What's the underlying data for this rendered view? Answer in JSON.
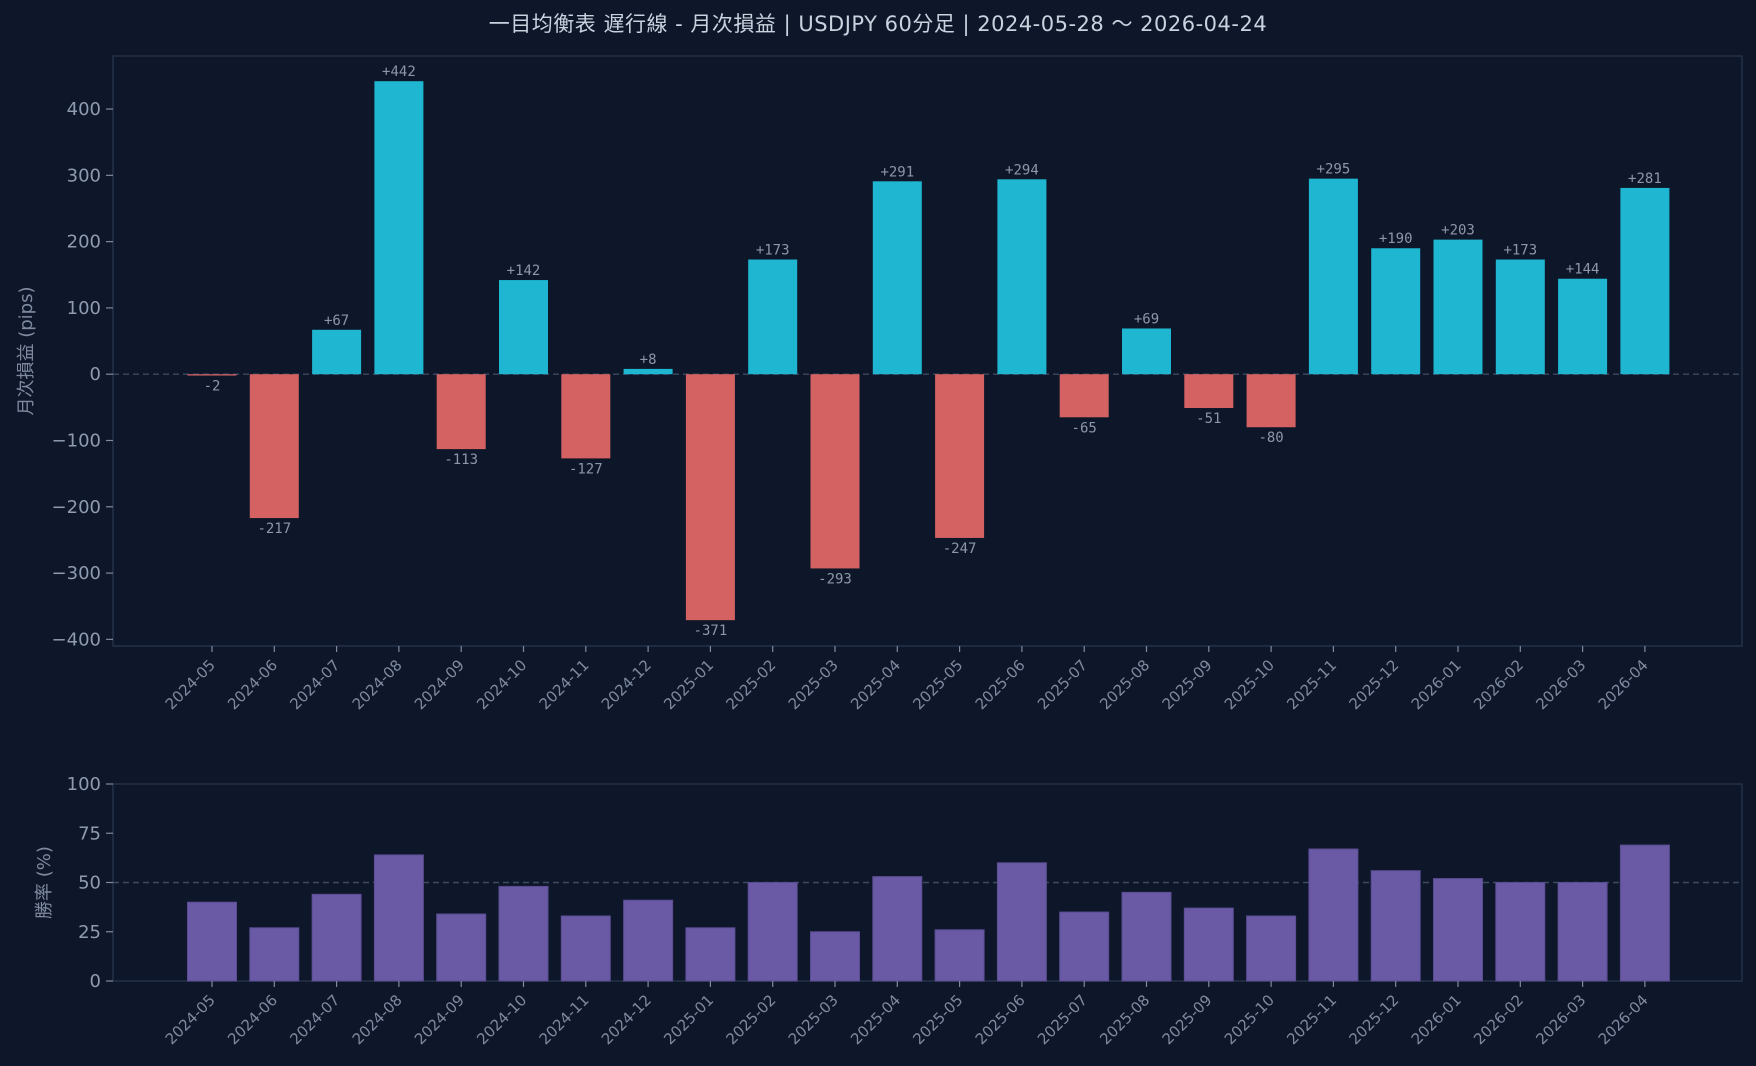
{
  "title": "一目均衡表 遅行線 - 月次損益 | USDJPY 60分足 | 2024-05-28 〜 2026-04-24",
  "colors": {
    "background": "#0e1729",
    "profit": "#1eb6d0",
    "loss": "#d46262",
    "winrate": "#6a5aa6",
    "refline": "#3c4a62",
    "frame": "#233047"
  },
  "chart_data": [
    {
      "type": "bar",
      "categories": [
        "2024-05",
        "2024-06",
        "2024-07",
        "2024-08",
        "2024-09",
        "2024-10",
        "2024-11",
        "2024-12",
        "2025-01",
        "2025-02",
        "2025-03",
        "2025-04",
        "2025-05",
        "2025-06",
        "2025-07",
        "2025-08",
        "2025-09",
        "2025-10",
        "2025-11",
        "2025-12",
        "2026-01",
        "2026-02",
        "2026-03",
        "2026-04"
      ],
      "values": [
        -2,
        -217,
        67,
        442,
        -113,
        142,
        -127,
        8,
        -371,
        173,
        -293,
        291,
        -247,
        294,
        -65,
        69,
        -51,
        -80,
        295,
        190,
        203,
        173,
        144,
        281
      ],
      "data_labels": [
        "-2",
        "-217",
        "+67",
        "+442",
        "-113",
        "+142",
        "-127",
        "+8",
        "-371",
        "+173",
        "-293",
        "+291",
        "-247",
        "+294",
        "-65",
        "+69",
        "-51",
        "-80",
        "+295",
        "+190",
        "+203",
        "+173",
        "+144",
        "+281"
      ],
      "ylabel": "月次損益 (pips)",
      "ylim": [
        -410,
        480
      ],
      "yticks": [
        400,
        300,
        200,
        100,
        0,
        -100,
        -200,
        -300,
        -400
      ],
      "ytick_labels": [
        "400",
        "300",
        "200",
        "100",
        "0",
        "−100",
        "−200",
        "−300",
        "−400"
      ],
      "reference_line": 0
    },
    {
      "type": "bar",
      "categories": [
        "2024-05",
        "2024-06",
        "2024-07",
        "2024-08",
        "2024-09",
        "2024-10",
        "2024-11",
        "2024-12",
        "2025-01",
        "2025-02",
        "2025-03",
        "2025-04",
        "2025-05",
        "2025-06",
        "2025-07",
        "2025-08",
        "2025-09",
        "2025-10",
        "2025-11",
        "2025-12",
        "2026-01",
        "2026-02",
        "2026-03",
        "2026-04"
      ],
      "values": [
        40,
        27,
        44,
        64,
        34,
        48,
        33,
        41,
        27,
        50,
        25,
        53,
        26,
        60,
        35,
        45,
        37,
        33,
        67,
        56,
        52,
        50,
        50,
        69
      ],
      "ylabel": "勝率 (%)",
      "ylim": [
        0,
        100
      ],
      "yticks": [
        0,
        25,
        50,
        75,
        100
      ],
      "ytick_labels": [
        "0",
        "25",
        "50",
        "75",
        "100"
      ],
      "reference_line": 50
    }
  ]
}
